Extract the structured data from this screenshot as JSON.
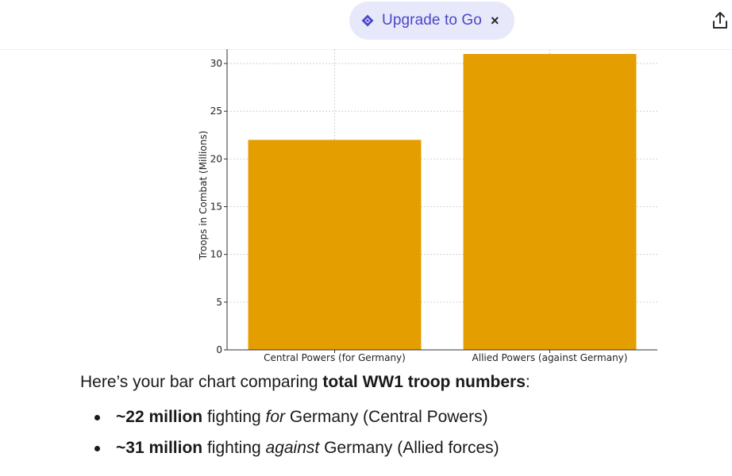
{
  "header": {
    "upgrade_label": "Upgrade to Go",
    "close_glyph": "×",
    "accent_color": "#4b47c7",
    "pill_color": "#e8e8fb",
    "icons": [
      "diamond-icon",
      "close-icon",
      "share-icon"
    ]
  },
  "chart_data": {
    "type": "bar",
    "categories": [
      "Central Powers (for Germany)",
      "Allied Powers (against Germany)"
    ],
    "values": [
      22,
      31
    ],
    "title": "",
    "xlabel": "",
    "ylabel": "Troops in Combat (Millions)",
    "ylim": [
      0,
      31.5
    ],
    "yticks": [
      0,
      5,
      10,
      15,
      20,
      25,
      30
    ],
    "bar_color": "#e59e00",
    "grid": true
  },
  "message": {
    "intro_prefix": "Here’s your bar chart comparing ",
    "intro_bold": "total WW1 troop numbers",
    "intro_suffix": ":",
    "bullets": [
      {
        "bold": "~22 million",
        "pre": " fighting ",
        "italic": "for",
        "post": " Germany (Central Powers)"
      },
      {
        "bold": "~31 million",
        "pre": " fighting ",
        "italic": "against",
        "post": " Germany (Allied forces)"
      }
    ]
  }
}
